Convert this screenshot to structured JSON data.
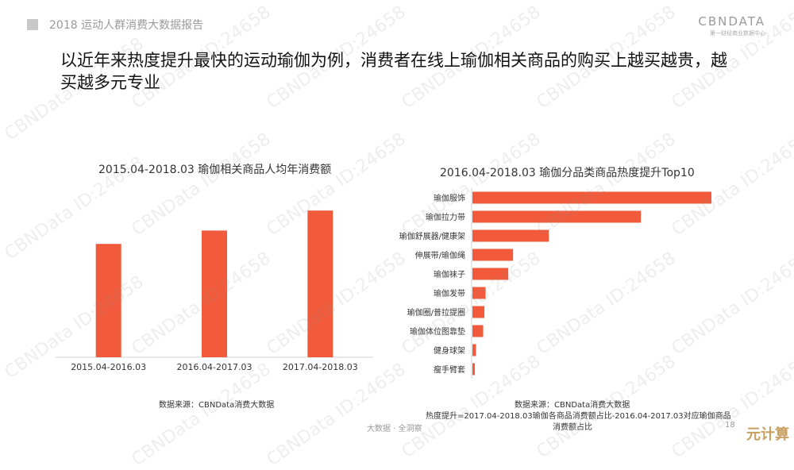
{
  "header": {
    "report_title": "2018 运动人群消费大数据报告",
    "logo_text": "CBNDATA",
    "logo_sub": "第一财经商业数据中心"
  },
  "headline": "以近年来热度提升最快的运动瑜伽为例，消费者在线上瑜伽相关商品的购买上越买越贵，越买越多元专业",
  "watermark": "CBNData ID:24658",
  "chart_data": [
    {
      "type": "bar",
      "title": "2015.04-2018.03 瑜伽相关商品人均年消费额",
      "categories": [
        "2015.04-2016.03",
        "2016.04-2017.03",
        "2017.04-2018.03"
      ],
      "values": [
        51,
        57,
        66
      ],
      "ylim": [
        0,
        100
      ],
      "xlabel": "",
      "ylabel": "",
      "grid": false,
      "color": "#f15a3a",
      "source": "数据来源：CBNData消费大数据"
    },
    {
      "type": "bar",
      "orientation": "horizontal",
      "title": "2016.04-2018.03 瑜伽分品类商品热度提升Top10",
      "categories": [
        "瑜伽服饰",
        "瑜伽拉力带",
        "瑜伽舒展器/健康架",
        "伸展带/瑜伽绳",
        "瑜伽袜子",
        "瑜伽发带",
        "瑜伽圈/普拉提圈",
        "瑜伽体位图靠垫",
        "健身球架",
        "瘦手臂套"
      ],
      "values": [
        100,
        70.5,
        32,
        17,
        15,
        5.5,
        5,
        4.5,
        1.5,
        1
      ],
      "xlim": [
        0,
        100
      ],
      "grid": false,
      "color": "#f15a3a",
      "source_lines": [
        "数据来源：CBNData消费大数据",
        "热度提升=2017.04-2018.03瑜伽各商品消费额占比-2016.04-2017.03对应瑜伽商品",
        "消费额占比"
      ]
    }
  ],
  "footer": {
    "text": "大数据 · 全洞察",
    "page": "18",
    "brand": "元计算"
  }
}
